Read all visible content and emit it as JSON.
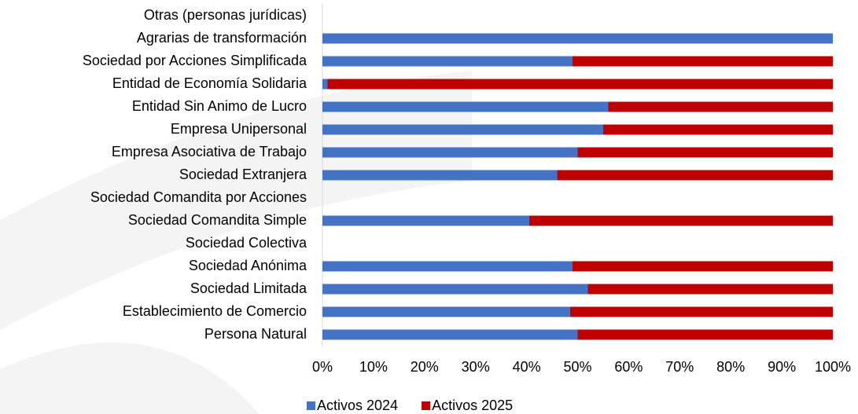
{
  "chart_data": {
    "type": "stacked-bar-horizontal",
    "categories": [
      "Otras (personas jurídicas)",
      "Agrarias de transformación",
      "Sociedad por Acciones Simplificada",
      "Entidad de Economía Solidaria",
      "Entidad Sin Animo de Lucro",
      "Empresa Unipersonal",
      "Empresa Asociativa de Trabajo",
      "Sociedad Extranjera",
      "Sociedad Comandita por Acciones",
      "Sociedad Comandita Simple",
      "Sociedad Colectiva",
      "Sociedad Anónima",
      "Sociedad Limitada",
      "Establecimiento de Comercio",
      "Persona Natural"
    ],
    "series": [
      {
        "name": "Activos 2024",
        "color": "#4472c4",
        "values": [
          null,
          100,
          49,
          1,
          56,
          55,
          50,
          46,
          null,
          40.5,
          null,
          49,
          52,
          48.5,
          50
        ]
      },
      {
        "name": "Activos 2025",
        "color": "#c00000",
        "values": [
          null,
          0,
          51,
          99,
          44,
          45,
          50,
          54,
          null,
          59.5,
          null,
          51,
          48,
          51.5,
          50
        ]
      }
    ],
    "xlim": [
      0,
      100
    ],
    "xticks": [
      {
        "value": 0,
        "label": "0%"
      },
      {
        "value": 10,
        "label": "10%"
      },
      {
        "value": 20,
        "label": "20%"
      },
      {
        "value": 30,
        "label": "30%"
      },
      {
        "value": 40,
        "label": "40%"
      },
      {
        "value": 50,
        "label": "50%"
      },
      {
        "value": 60,
        "label": "60%"
      },
      {
        "value": 70,
        "label": "70%"
      },
      {
        "value": 80,
        "label": "80%"
      },
      {
        "value": 90,
        "label": "90%"
      },
      {
        "value": 100,
        "label": "100%"
      }
    ],
    "legend": "bottom"
  }
}
